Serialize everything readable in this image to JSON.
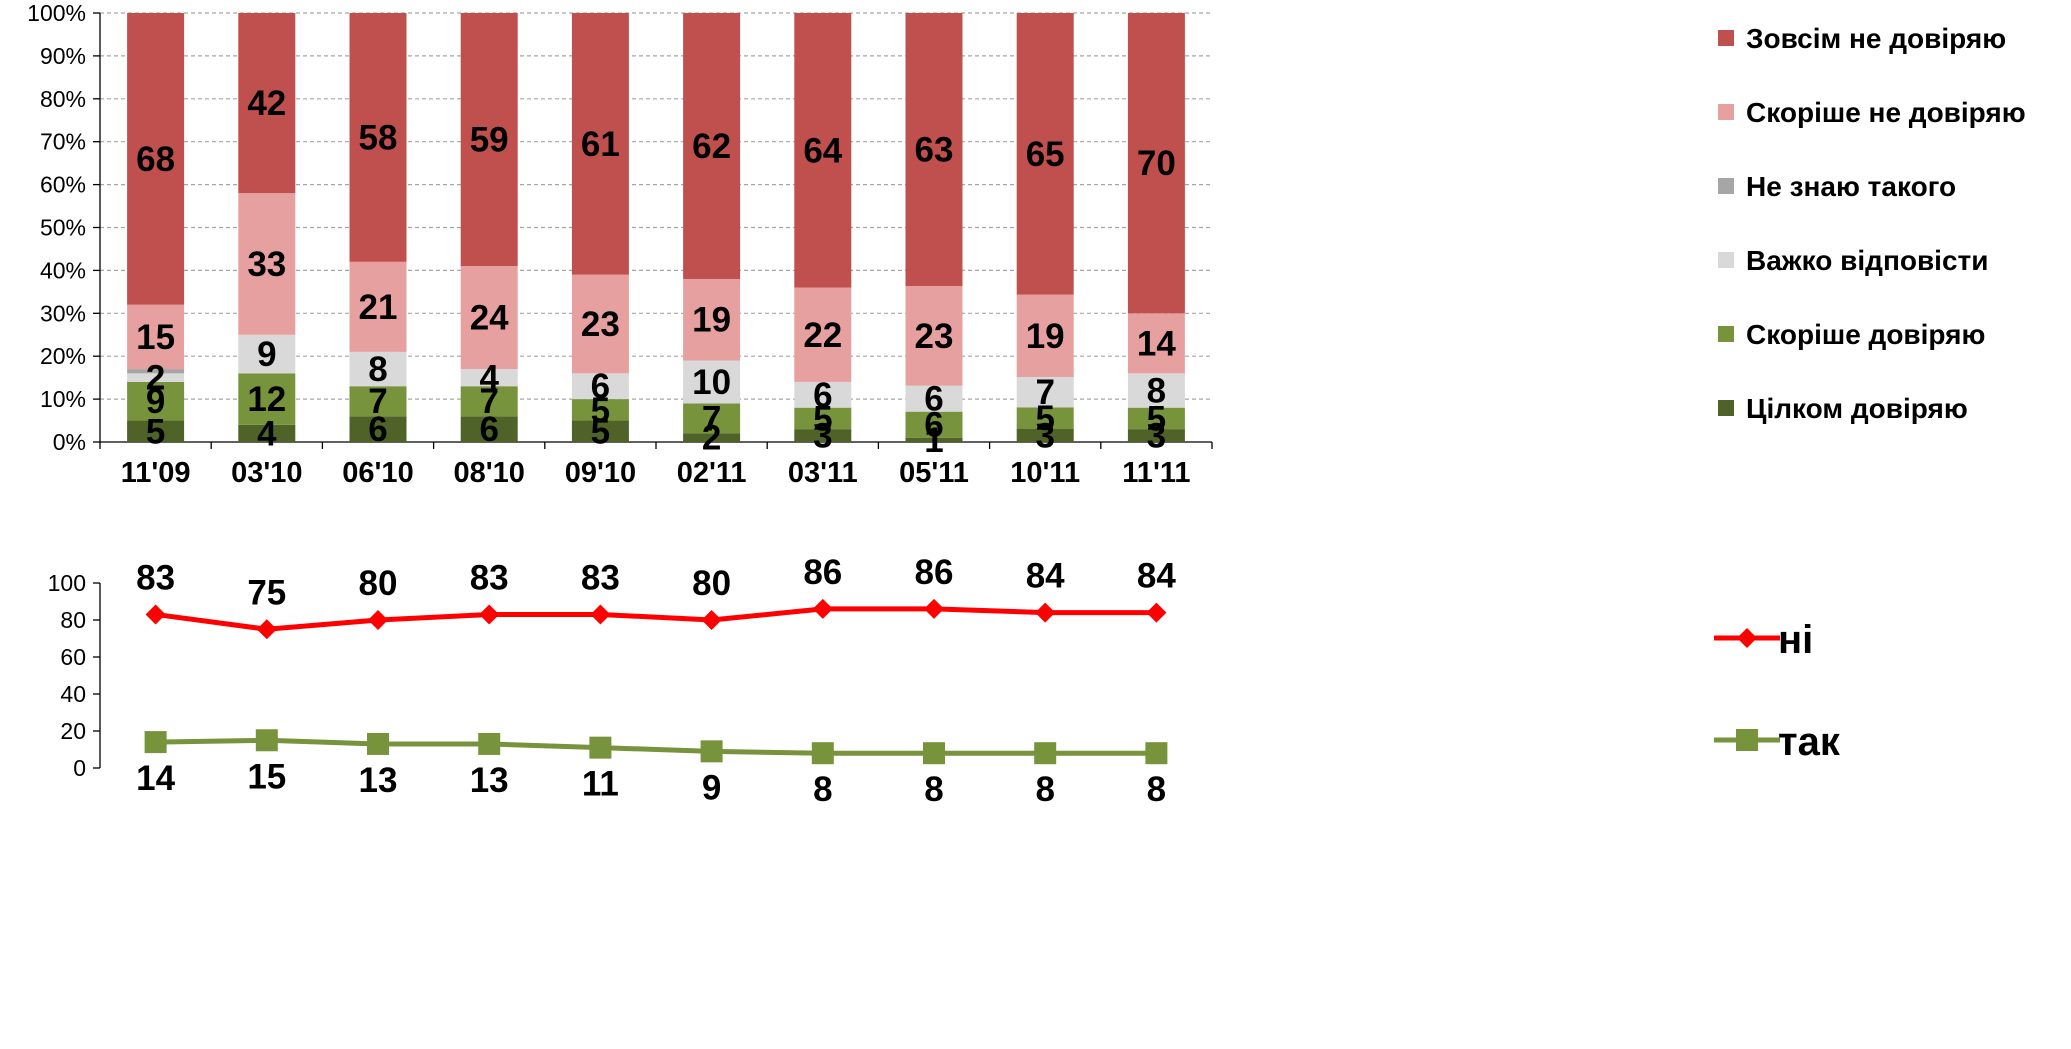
{
  "chart_data": [
    {
      "type": "bar",
      "stacked": true,
      "percent": true,
      "categories": [
        "11'09",
        "03'10",
        "06'10",
        "08'10",
        "09'10",
        "02'11",
        "03'11",
        "05'11",
        "10'11",
        "11'11"
      ],
      "series": [
        {
          "name": "Цілком довіряю",
          "color": "#4f6228",
          "values": [
            5,
            4,
            6,
            6,
            5,
            2,
            3,
            1,
            3,
            3
          ]
        },
        {
          "name": "Скоріше довіряю",
          "color": "#77933c",
          "values": [
            9,
            12,
            7,
            7,
            5,
            7,
            5,
            6,
            5,
            5
          ]
        },
        {
          "name": "Важко відповісти",
          "color": "#d9d9d9",
          "values": [
            2,
            9,
            8,
            4,
            6,
            10,
            6,
            6,
            7,
            8
          ]
        },
        {
          "name": "Не знаю такого",
          "color": "#a6a6a6",
          "values": [
            1,
            0,
            0,
            0,
            0,
            0,
            0,
            0,
            0,
            0
          ]
        },
        {
          "name": "Скоріше не довіряю",
          "color": "#e6a0a0",
          "values": [
            15,
            33,
            21,
            24,
            23,
            19,
            22,
            23,
            19,
            14
          ]
        },
        {
          "name": "Зовсім не довіряю",
          "color": "#c0504d",
          "values": [
            68,
            42,
            58,
            59,
            61,
            62,
            64,
            63,
            65,
            70
          ]
        }
      ],
      "data_labels": [
        [
          "5",
          "4",
          "6",
          "6",
          "5",
          "2",
          "3",
          "1",
          "3",
          "3"
        ],
        [
          "9",
          "12",
          "7",
          "7",
          "5",
          "7",
          "5",
          "6",
          "5",
          "5"
        ],
        [
          "2",
          "9",
          "8",
          "4",
          "6",
          "10",
          "6",
          "6",
          "7",
          "8"
        ],
        [
          "",
          "",
          "",
          "",
          "",
          "",
          "",
          "",
          "",
          ""
        ],
        [
          "15",
          "33",
          "21",
          "24",
          "23",
          "19",
          "22",
          "23",
          "19",
          "14"
        ],
        [
          "68",
          "42",
          "58",
          "59",
          "61",
          "62",
          "64",
          "63",
          "65",
          "70"
        ]
      ],
      "legend_order": [
        "Зовсім не довіряю",
        "Скоріше не довіряю",
        "Не знаю такого",
        "Важко відповісти",
        "Скоріше довіряю",
        "Цілком довіряю"
      ],
      "yticks": [
        "0%",
        "10%",
        "20%",
        "30%",
        "40%",
        "50%",
        "60%",
        "70%",
        "80%",
        "90%",
        "100%"
      ],
      "ylim": [
        0,
        100
      ],
      "grid": true,
      "legend_position": "right"
    },
    {
      "type": "line",
      "categories": [
        "11'09",
        "03'10",
        "06'10",
        "08'10",
        "09'10",
        "02'11",
        "03'11",
        "05'11",
        "10'11",
        "11'11"
      ],
      "series": [
        {
          "name": "ні",
          "color": "#ff0000",
          "marker": "diamond",
          "values": [
            83,
            75,
            80,
            83,
            83,
            80,
            86,
            86,
            84,
            84
          ]
        },
        {
          "name": "так",
          "color": "#77933c",
          "marker": "square",
          "values": [
            14,
            15,
            13,
            13,
            11,
            9,
            8,
            8,
            8,
            8
          ]
        }
      ],
      "yticks": [
        "0",
        "20",
        "40",
        "60",
        "80",
        "100"
      ],
      "ylim": [
        0,
        100
      ],
      "grid": false,
      "legend_position": "right"
    }
  ]
}
